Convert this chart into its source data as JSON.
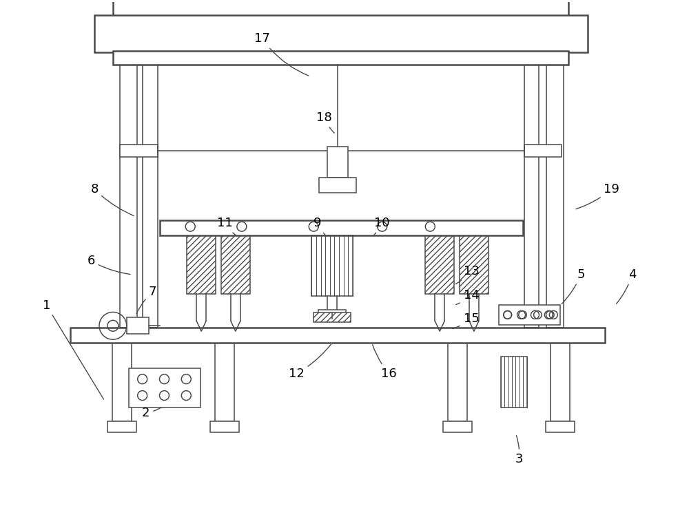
{
  "bg_color": "#ffffff",
  "line_color": "#4a4a4a",
  "fig_width": 10.0,
  "fig_height": 7.54,
  "lw_main": 1.8,
  "lw_thin": 1.1,
  "lw_label": 1.0
}
